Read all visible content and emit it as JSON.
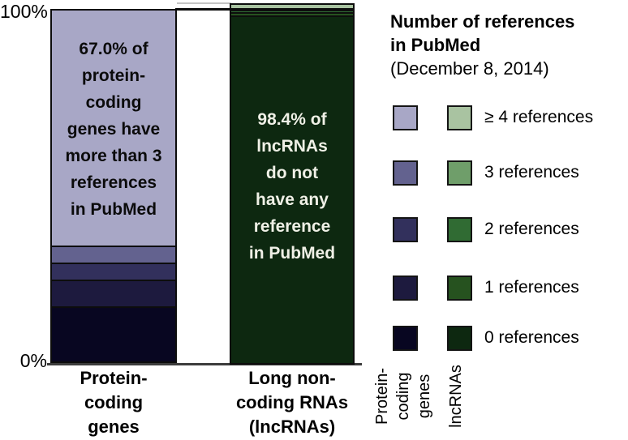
{
  "y_axis": {
    "top_label": "100%",
    "bottom_label": "0%"
  },
  "bars": [
    {
      "id": "protein-coding-genes",
      "annotation": "67.0% of\nprotein-\ncoding\ngenes have\nmore than 3\nreferences\nin PubMed",
      "x_label": "Protein-\ncoding\ngenes"
    },
    {
      "id": "lncrnas",
      "annotation": "98.4% of\nlncRNAs\ndo not\nhave any\nreference\nin PubMed",
      "x_label": "Long non-\ncoding RNAs\n(lncRNAs)"
    }
  ],
  "legend": {
    "title_line1": "Number of references",
    "title_line2": "in PubMed",
    "subtitle": "(December 8, 2014)",
    "rows": [
      {
        "label": "≥ 4 references",
        "protein_color": "#a8a7c6",
        "lncrna_color": "#a9c3a1"
      },
      {
        "label": "3 references",
        "protein_color": "#63628f",
        "lncrna_color": "#6f9e6a"
      },
      {
        "label": "2 references",
        "protein_color": "#32305c",
        "lncrna_color": "#306b33"
      },
      {
        "label": "1 references",
        "protein_color": "#1d1a3e",
        "lncrna_color": "#26521f"
      },
      {
        "label": "0 references",
        "protein_color": "#080621",
        "lncrna_color": "#0d2810"
      }
    ],
    "column_labels": {
      "protein": "Protein-\ncoding\ngenes",
      "lncrna": "lncRNAs"
    }
  },
  "chart_data": {
    "type": "bar",
    "subtype": "stacked-percentage",
    "title": "Number of references in PubMed (December 8, 2014)",
    "categories": [
      "Protein-coding genes",
      "Long non-coding RNAs (lncRNAs)"
    ],
    "series": [
      {
        "name": "≥ 4 references",
        "values": [
          67.0,
          0.9
        ]
      },
      {
        "name": "3 references",
        "values": [
          4.3,
          0.1
        ]
      },
      {
        "name": "2 references",
        "values": [
          4.5,
          0.1
        ]
      },
      {
        "name": "1 references",
        "values": [
          7.0,
          0.5
        ]
      },
      {
        "name": "0 references",
        "values": [
          17.2,
          98.4
        ]
      }
    ],
    "annotations": [
      "67.0% of protein-coding genes have more than 3 references in PubMed",
      "98.4% of lncRNAs do not have any reference in PubMed"
    ],
    "ylabel": "%",
    "ylim": [
      0,
      100
    ],
    "legend_position": "right",
    "grid": false
  }
}
